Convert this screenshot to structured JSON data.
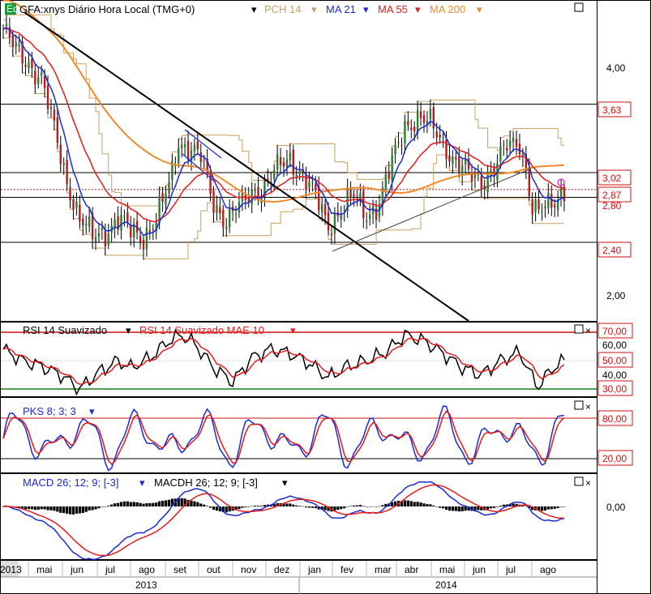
{
  "colors": {
    "up": "#2e7d32",
    "down": "#b71c1c",
    "ma21": "#1a2bd6",
    "ma55": "#e51a1a",
    "ma200": "#f08a2a",
    "pch": "#c8a060",
    "trend": "#000000",
    "green": "#1b7a1b",
    "red": "#d01010"
  },
  "header": {
    "icon_label": "Eq",
    "title": "GFA:xnys Diário Hora Local (TMG+0)",
    "pch": "PCH 14",
    "ma21": "MA 21",
    "ma55": "MA 55",
    "ma200": "MA 200"
  },
  "rsi_header": {
    "a": "RSI 14 Suavizado",
    "b": "RSI 14 Suavizado MAE 10"
  },
  "pks_header": {
    "a": "PKS 8; 3; 3"
  },
  "macd_header": {
    "a": "MACD 26; 12; 9; [-3]",
    "b": "MACDH 26; 12; 9; [-3]"
  },
  "price_axis": {
    "ticks": [
      "4,00",
      "2,00"
    ],
    "boxes": [
      "3,63",
      "3,02",
      "2,87",
      "2,80",
      "2,40"
    ]
  },
  "rsi_axis": {
    "boxes": [
      "70,00",
      "50,00",
      "30,00"
    ],
    "ticks": [
      "60,00",
      "40,00"
    ]
  },
  "pks_axis": {
    "boxes": [
      "80,00",
      "20,00"
    ]
  },
  "macd_axis": {
    "ticks": [
      "0,00"
    ]
  },
  "time_axis": {
    "months": [
      "2013",
      "mai",
      "jun",
      "jul",
      "ago",
      "set",
      "out",
      "nov",
      "dez",
      "jan",
      "fev",
      "mar",
      "abr",
      "mai",
      "jun",
      "jul",
      "ago"
    ],
    "years": [
      "2013",
      "2014"
    ]
  },
  "chart_data": {
    "type": "candlestick",
    "symbol": "GFA:xnys",
    "ylim": [
      1.7,
      4.55
    ],
    "horizontal_levels": [
      3.63,
      3.02,
      2.87,
      2.8,
      2.4
    ],
    "rsi_levels": [
      70,
      30
    ],
    "pks_levels": [
      80,
      20
    ],
    "price_anchors": [
      [
        0,
        4.3
      ],
      [
        4,
        4.1
      ],
      [
        8,
        4.0
      ],
      [
        12,
        3.85
      ],
      [
        16,
        3.4
      ],
      [
        20,
        2.95
      ],
      [
        24,
        2.6
      ],
      [
        28,
        2.45
      ],
      [
        32,
        2.5
      ],
      [
        36,
        2.6
      ],
      [
        40,
        2.5
      ],
      [
        44,
        2.45
      ],
      [
        48,
        2.6
      ],
      [
        52,
        2.9
      ],
      [
        55,
        3.3
      ],
      [
        58,
        3.25
      ],
      [
        62,
        3.15
      ],
      [
        66,
        2.75
      ],
      [
        70,
        2.6
      ],
      [
        74,
        2.7
      ],
      [
        78,
        2.85
      ],
      [
        82,
        2.9
      ],
      [
        86,
        3.05
      ],
      [
        90,
        3.15
      ],
      [
        94,
        3.0
      ],
      [
        98,
        2.8
      ],
      [
        102,
        2.55
      ],
      [
        106,
        2.7
      ],
      [
        110,
        2.8
      ],
      [
        114,
        2.65
      ],
      [
        118,
        2.75
      ],
      [
        122,
        3.1
      ],
      [
        126,
        3.45
      ],
      [
        130,
        3.5
      ],
      [
        134,
        3.45
      ],
      [
        138,
        3.3
      ],
      [
        142,
        3.1
      ],
      [
        146,
        3.0
      ],
      [
        150,
        2.95
      ],
      [
        154,
        3.05
      ],
      [
        158,
        3.25
      ],
      [
        162,
        3.3
      ],
      [
        164,
        3.05
      ],
      [
        166,
        2.7
      ],
      [
        168,
        2.65
      ],
      [
        172,
        2.75
      ],
      [
        176,
        2.88
      ]
    ],
    "rsi_anchors": [
      [
        0,
        58
      ],
      [
        6,
        50
      ],
      [
        12,
        46
      ],
      [
        18,
        40
      ],
      [
        24,
        30
      ],
      [
        30,
        42
      ],
      [
        36,
        50
      ],
      [
        40,
        45
      ],
      [
        46,
        52
      ],
      [
        52,
        64
      ],
      [
        56,
        68
      ],
      [
        60,
        62
      ],
      [
        66,
        45
      ],
      [
        72,
        35
      ],
      [
        78,
        52
      ],
      [
        84,
        58
      ],
      [
        90,
        55
      ],
      [
        96,
        48
      ],
      [
        102,
        38
      ],
      [
        108,
        46
      ],
      [
        114,
        50
      ],
      [
        120,
        56
      ],
      [
        126,
        68
      ],
      [
        132,
        64
      ],
      [
        138,
        55
      ],
      [
        144,
        45
      ],
      [
        150,
        40
      ],
      [
        156,
        50
      ],
      [
        162,
        56
      ],
      [
        166,
        38
      ],
      [
        168,
        32
      ],
      [
        172,
        44
      ],
      [
        176,
        50
      ]
    ],
    "rsi_latest": 50,
    "pks_latest": 70,
    "macd_latest": -0.03
  }
}
